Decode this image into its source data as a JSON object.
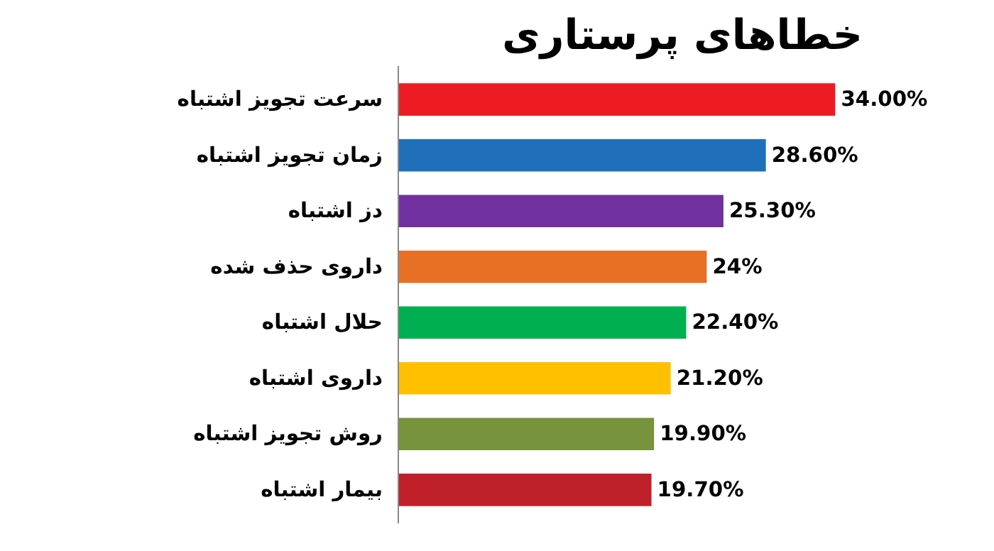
{
  "chart_data": {
    "type": "bar",
    "orientation": "horizontal",
    "title": "خطاهای پرستاری",
    "categories": [
      "سرعت تجویز اشتباه",
      "زمان تجویز اشتباه",
      "دز اشتباه",
      "داروی حذف شده",
      "حلال اشتباه",
      "داروی اشتباه",
      "روش تجویز اشتباه",
      "بیمار اشتباه"
    ],
    "values": [
      34,
      28.6,
      25.3,
      24,
      22.4,
      21.2,
      19.9,
      19.7
    ],
    "colors": [
      "#ed1c24",
      "#1f6fba",
      "#7030a0",
      "#e87025",
      "#00b050",
      "#ffc000",
      "#77933c",
      "#c0202a"
    ],
    "value_labels": [
      "34.00%",
      "28.60%",
      "25.30%",
      "24%",
      "22.40%",
      "21.20%",
      "19.90%",
      "19.70%"
    ],
    "grid": false
  }
}
